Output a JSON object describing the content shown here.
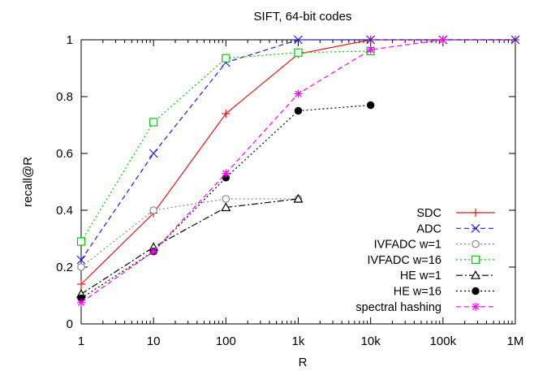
{
  "chart_data": {
    "type": "line",
    "title": "SIFT, 64-bit codes",
    "xlabel": "R",
    "ylabel": "recall@R",
    "x_scale": "log",
    "xlim": [
      1,
      1000000
    ],
    "ylim": [
      0,
      1
    ],
    "x_ticks": [
      {
        "value": 1,
        "label": "1"
      },
      {
        "value": 10,
        "label": "10"
      },
      {
        "value": 100,
        "label": "100"
      },
      {
        "value": 1000,
        "label": "1k"
      },
      {
        "value": 10000,
        "label": "10k"
      },
      {
        "value": 100000,
        "label": "100k"
      },
      {
        "value": 1000000,
        "label": "1M"
      }
    ],
    "y_ticks": [
      {
        "value": 0,
        "label": "0"
      },
      {
        "value": 0.2,
        "label": "0.2"
      },
      {
        "value": 0.4,
        "label": "0.4"
      },
      {
        "value": 0.6,
        "label": "0.6"
      },
      {
        "value": 0.8,
        "label": "0.8"
      },
      {
        "value": 1,
        "label": "1"
      }
    ],
    "grid": false,
    "legend_position": "bottom-right",
    "series": [
      {
        "name": "SDC",
        "color": "#e41a1c",
        "dash": "solid",
        "marker": "plus",
        "x": [
          1,
          10,
          100,
          1000,
          10000,
          100000,
          1000000
        ],
        "y": [
          0.14,
          0.39,
          0.74,
          0.95,
          1.0,
          1.0,
          1.0
        ]
      },
      {
        "name": "ADC",
        "color": "#1a1aff",
        "dash": "dashed",
        "marker": "cross",
        "x": [
          1,
          10,
          100,
          1000,
          10000,
          100000,
          1000000
        ],
        "y": [
          0.225,
          0.6,
          0.92,
          1.0,
          1.0,
          1.0,
          1.0
        ]
      },
      {
        "name": "IVFADC w=1",
        "color": "#888888",
        "dash": "dotted",
        "marker": "circle-open",
        "x": [
          1,
          10,
          100,
          1000
        ],
        "y": [
          0.2,
          0.4,
          0.44,
          0.44
        ]
      },
      {
        "name": "IVFADC w=16",
        "color": "#00cc00",
        "dash": "dotted",
        "marker": "square-open",
        "x": [
          1,
          10,
          100,
          1000,
          10000
        ],
        "y": [
          0.29,
          0.71,
          0.935,
          0.955,
          0.96
        ]
      },
      {
        "name": "HE w=1",
        "color": "#000000",
        "dash": "dashdot",
        "marker": "triangle-open",
        "x": [
          1,
          10,
          100,
          1000
        ],
        "y": [
          0.105,
          0.27,
          0.41,
          0.44
        ]
      },
      {
        "name": "HE w=16",
        "color": "#000000",
        "dash": "dotted",
        "marker": "circle-filled",
        "x": [
          1,
          10,
          100,
          1000,
          10000
        ],
        "y": [
          0.09,
          0.255,
          0.515,
          0.75,
          0.77
        ]
      },
      {
        "name": "spectral hashing",
        "color": "#ff00ff",
        "dash": "dashed",
        "marker": "star",
        "x": [
          1,
          10,
          100,
          1000,
          10000,
          100000
        ],
        "y": [
          0.075,
          0.255,
          0.53,
          0.81,
          0.965,
          1.0
        ]
      }
    ]
  }
}
